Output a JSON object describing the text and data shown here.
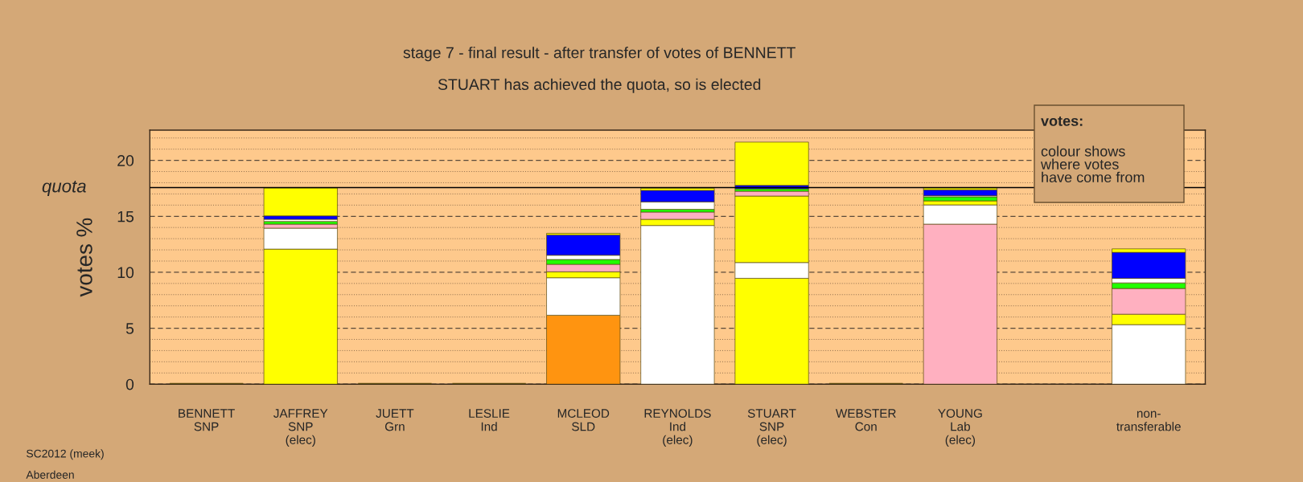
{
  "chart_data": {
    "type": "bar",
    "stacked": true,
    "title": "stage 7 - final result - after transfer of votes of BENNETT",
    "subtitle": "STUART has achieved the quota, so is elected",
    "ylabel": "votes %",
    "categories": [
      "BENNETT\nSNP",
      "JAFFREY\nSNP\n(elec)",
      "JUETT\nGrn",
      "LESLIE\nInd",
      "MCLEOD\nSLD",
      "REYNOLDS\nInd\n(elec)",
      "STUART\nSNP\n(elec)",
      "WEBSTER\nCon",
      "YOUNG\nLab\n(elec)",
      null,
      "non-\ntransferable"
    ],
    "series": [
      {
        "values": [
          0,
          12.07,
          0,
          0,
          6.16,
          14.18,
          9.46,
          0,
          14.3,
          null,
          5.32
        ],
        "colors": [
          "#5a4a10",
          "#ffff00",
          "#5a4a10",
          "#5a4a10",
          "#ff9410",
          "#ffffff",
          "#ffff00",
          "#5a4a10",
          "#ffb0c0",
          null,
          "#ffffff"
        ]
      },
      {
        "values": [
          null,
          1.87,
          null,
          null,
          3.35,
          null,
          1.41,
          null,
          1.72,
          null,
          null
        ],
        "colors": [
          null,
          "#ffffff",
          null,
          null,
          "#ffffff",
          null,
          "#ffffff",
          null,
          "#ffffff",
          null,
          null
        ]
      },
      {
        "values": [
          null,
          null,
          null,
          null,
          0.53,
          0.55,
          5.94,
          null,
          0.36,
          null,
          0.93
        ],
        "colors": [
          null,
          null,
          null,
          null,
          "#ffff00",
          "#ffff00",
          "#ffff00",
          null,
          "#ffff00",
          null,
          "#ffff00"
        ]
      },
      {
        "values": [
          null,
          0.36,
          null,
          null,
          0.67,
          0.65,
          0.43,
          null,
          null,
          null,
          2.3
        ],
        "colors": [
          null,
          "#ffb0c0",
          null,
          null,
          "#ffb0c0",
          "#ffb0c0",
          "#ffb0c0",
          null,
          null,
          null,
          "#ffb0c0"
        ]
      },
      {
        "values": [
          null,
          0.24,
          null,
          null,
          0.43,
          0.24,
          0.22,
          null,
          0.36,
          null,
          0.5
        ],
        "colors": [
          null,
          "#22ff00",
          null,
          null,
          "#22ff00",
          "#22ff00",
          "#22ff00",
          null,
          "#22ff00",
          null,
          "#22ff00"
        ]
      },
      {
        "values": [
          null,
          0.19,
          null,
          null,
          0.38,
          0.67,
          null,
          null,
          0.1,
          null,
          0.41
        ],
        "colors": [
          null,
          "#ffffff",
          null,
          null,
          "#ffffff",
          "#ffffff",
          null,
          null,
          "#ffffff",
          null,
          "#ffffff"
        ]
      },
      {
        "values": [
          null,
          0.31,
          null,
          null,
          1.82,
          1.03,
          0.31,
          null,
          0.53,
          null,
          2.32
        ],
        "colors": [
          null,
          "#0000ff",
          null,
          null,
          "#0000ff",
          "#0000ff",
          "#0000ff",
          null,
          "#0000ff",
          null,
          "#0000ff"
        ]
      },
      {
        "values": [
          null,
          2.49,
          null,
          null,
          0.14,
          0.19,
          3.86,
          null,
          0.17,
          null,
          0.31
        ],
        "colors": [
          null,
          "#ffff00",
          null,
          null,
          "#ffff00",
          "#ffff00",
          "#ffff00",
          null,
          "#ffff00",
          null,
          "#ffff00"
        ]
      }
    ],
    "ylim": [
      0,
      22.7
    ],
    "yticks": [
      0,
      {
        "value": 1,
        "label": null
      },
      {
        "value": 2,
        "label": null
      },
      {
        "value": 3,
        "label": null
      },
      {
        "value": 4,
        "label": null
      },
      5,
      {
        "value": 6,
        "label": null
      },
      {
        "value": 7,
        "label": null
      },
      {
        "value": 8,
        "label": null
      },
      {
        "value": 9,
        "label": null
      },
      10,
      {
        "value": 11,
        "label": null
      },
      {
        "value": 12,
        "label": null
      },
      {
        "value": 13,
        "label": null
      },
      {
        "value": 14,
        "label": null
      },
      15,
      {
        "value": 16,
        "label": null
      },
      {
        "value": 17,
        "label": null
      },
      {
        "value": 18,
        "label": null
      },
      {
        "value": 19,
        "label": null
      },
      20,
      {
        "value": 21,
        "label": null
      },
      {
        "value": 22,
        "label": null
      }
    ],
    "grid": "y",
    "ref_lines": [
      {
        "axis": "y",
        "value": 17.56,
        "label": "quota",
        "color": "#000000",
        "line_style": "solid"
      }
    ],
    "annotations": [
      "SC2012 (meek)",
      "Aberdeen",
      "votes:",
      "colour shows\nwhere votes\nhave come from"
    ]
  }
}
